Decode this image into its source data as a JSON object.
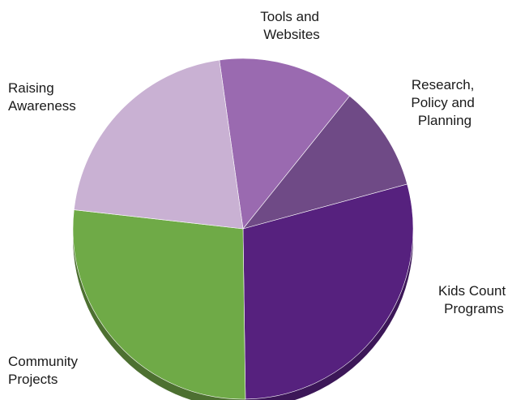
{
  "chart_data": {
    "type": "pie",
    "title": "",
    "categories": [
      "Tools and Websites",
      "Research, Policy and Planning",
      "Kids Count Programs",
      "Community Projects",
      "Raising Awareness"
    ],
    "label_lines": [
      [
        "Tools and",
        "Websites"
      ],
      [
        "Research,",
        "Policy and",
        "Planning"
      ],
      [
        "Kids Count",
        "Programs"
      ],
      [
        "Community",
        "Projects"
      ],
      [
        "Raising",
        "Awareness"
      ]
    ],
    "values": [
      13,
      10,
      29,
      27,
      21
    ],
    "colors": [
      "#9a6ab0",
      "#6f4a86",
      "#56217e",
      "#6faa47",
      "#c9b1d3"
    ],
    "side_colors": [
      "#6d4a7d",
      "#4e3460",
      "#3c1758",
      "#4d7031",
      "#8e7d95"
    ],
    "legend": "none"
  }
}
